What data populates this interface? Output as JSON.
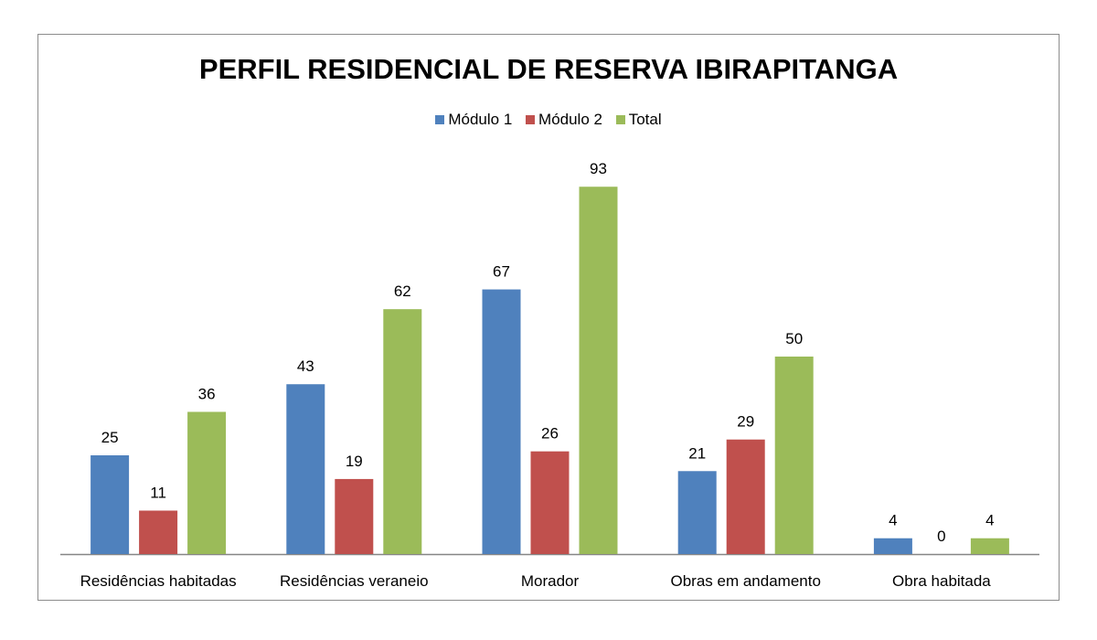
{
  "chart_data": {
    "type": "bar",
    "title": "PERFIL RESIDENCIAL DE RESERVA IBIRAPITANGA",
    "xlabel": "",
    "ylabel": "",
    "categories": [
      "Residências habitadas",
      "Residências veraneio",
      "Morador",
      "Obras em andamento",
      "Obra habitada"
    ],
    "series": [
      {
        "name": "Módulo 1",
        "color": "#4f81bd",
        "values": [
          25,
          43,
          67,
          21,
          4
        ]
      },
      {
        "name": "Módulo 2",
        "color": "#c0504d",
        "values": [
          11,
          19,
          26,
          29,
          0
        ]
      },
      {
        "name": "Total",
        "color": "#9bbb59",
        "values": [
          36,
          62,
          93,
          50,
          4
        ]
      }
    ],
    "ylim": [
      0,
      100
    ],
    "grid": false,
    "legend_position": "top",
    "data_labels": true
  }
}
